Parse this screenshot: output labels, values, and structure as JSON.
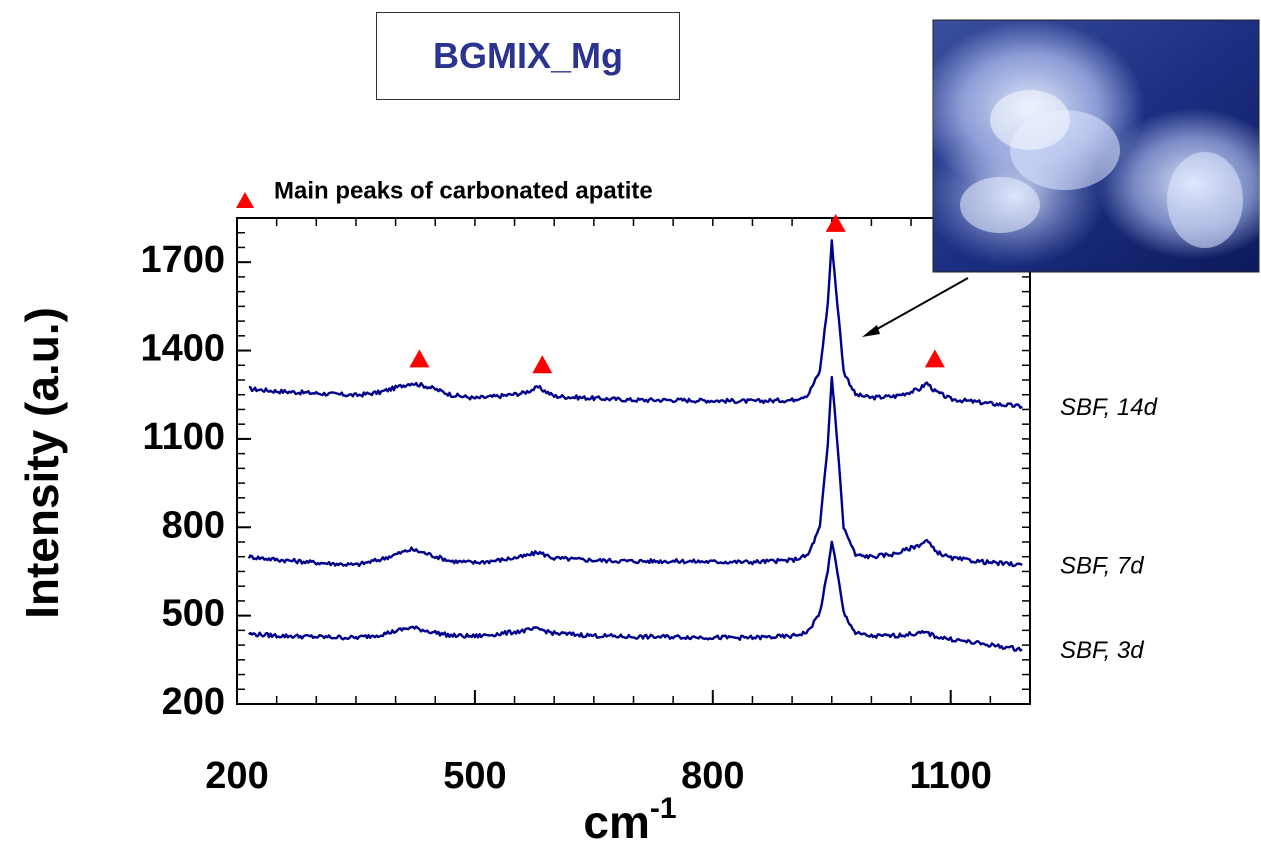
{
  "title": "BGMIX_Mg",
  "legend": {
    "text": "Main peaks of carbonated apatite",
    "marker_color": "#ff0000"
  },
  "colors": {
    "line": "#00008b",
    "title": "#2b3390",
    "marker": "#ff0000",
    "inset_background": "#1a2f8a"
  },
  "inset": {
    "description_icon": "microscope-photo"
  },
  "chart_data": {
    "type": "line",
    "title": "BGMIX_Mg",
    "xlabel": "cm-1",
    "xlabel_base": "cm",
    "xlabel_sup": "-1",
    "ylabel": "Intensity (a.u.)",
    "xlim": [
      200,
      1200
    ],
    "ylim": [
      200,
      1850
    ],
    "xticks": [
      200,
      500,
      800,
      1100
    ],
    "yticks": [
      200,
      500,
      800,
      1100,
      1400,
      1700
    ],
    "grid": false,
    "legend_position": "top-left",
    "series": [
      {
        "name": "SBF, 14d",
        "x": [
          215,
          250,
          300,
          350,
          380,
          420,
          440,
          470,
          500,
          530,
          560,
          580,
          600,
          650,
          700,
          750,
          800,
          850,
          900,
          920,
          935,
          945,
          950,
          955,
          965,
          980,
          1000,
          1030,
          1060,
          1070,
          1080,
          1100,
          1150,
          1190
        ],
        "y": [
          1270,
          1262,
          1255,
          1248,
          1258,
          1290,
          1278,
          1250,
          1238,
          1245,
          1255,
          1275,
          1245,
          1238,
          1232,
          1232,
          1230,
          1228,
          1232,
          1250,
          1330,
          1560,
          1770,
          1620,
          1330,
          1250,
          1240,
          1245,
          1268,
          1290,
          1262,
          1235,
          1220,
          1210
        ]
      },
      {
        "name": "SBF, 7d",
        "x": [
          215,
          250,
          300,
          350,
          380,
          420,
          440,
          470,
          500,
          530,
          560,
          580,
          600,
          650,
          700,
          750,
          800,
          850,
          900,
          920,
          935,
          945,
          950,
          955,
          965,
          980,
          1000,
          1030,
          1060,
          1070,
          1080,
          1100,
          1150,
          1190
        ],
        "y": [
          700,
          690,
          680,
          672,
          690,
          725,
          710,
          685,
          680,
          688,
          700,
          715,
          695,
          688,
          685,
          685,
          683,
          682,
          688,
          705,
          800,
          1080,
          1310,
          1160,
          800,
          705,
          700,
          710,
          740,
          755,
          720,
          695,
          680,
          672
        ]
      },
      {
        "name": "SBF, 3d",
        "x": [
          215,
          250,
          300,
          350,
          380,
          420,
          440,
          470,
          500,
          530,
          560,
          580,
          600,
          650,
          700,
          750,
          800,
          850,
          900,
          920,
          935,
          945,
          950,
          955,
          965,
          980,
          1000,
          1030,
          1060,
          1070,
          1080,
          1100,
          1150,
          1190
        ],
        "y": [
          438,
          432,
          428,
          425,
          435,
          460,
          448,
          432,
          430,
          438,
          448,
          455,
          440,
          432,
          428,
          428,
          426,
          425,
          430,
          445,
          510,
          650,
          755,
          680,
          510,
          440,
          430,
          432,
          440,
          442,
          430,
          420,
          400,
          385
        ]
      }
    ],
    "peak_markers": [
      {
        "x": 430,
        "y": 1370
      },
      {
        "x": 585,
        "y": 1350
      },
      {
        "x": 955,
        "y": 1830
      },
      {
        "x": 1080,
        "y": 1370
      }
    ],
    "annotation": "arrow from 960 cm-1 peak to inset micrograph"
  }
}
